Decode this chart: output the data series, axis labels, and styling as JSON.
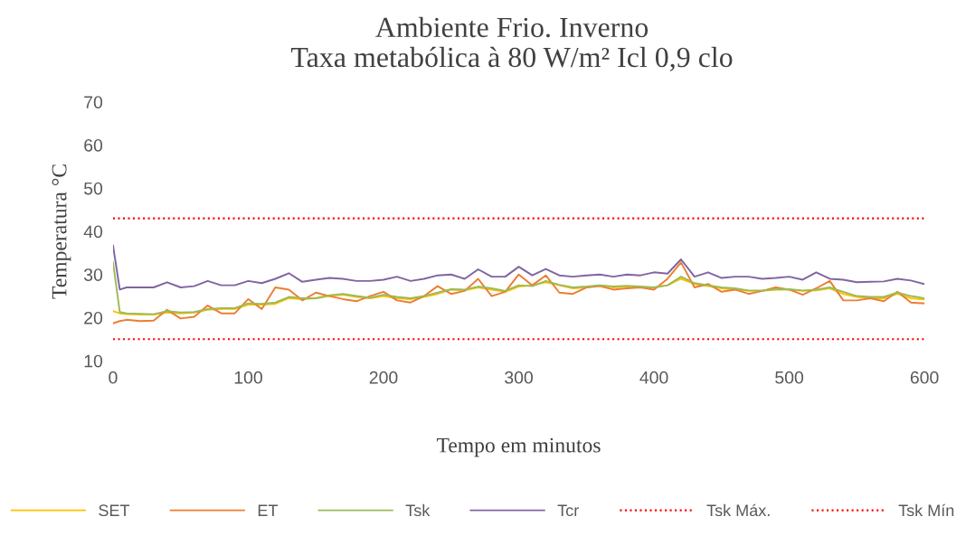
{
  "chart_data": {
    "type": "line",
    "title": "Ambiente Frio. Inverno",
    "subtitle": "Taxa metabólica à 80 W/m² Icl 0,9 clo",
    "xlabel": "Tempo em minutos",
    "ylabel": "Temperatura °C",
    "x": [
      0,
      5,
      10,
      20,
      30,
      40,
      50,
      60,
      70,
      80,
      90,
      100,
      110,
      120,
      130,
      140,
      150,
      160,
      170,
      180,
      190,
      200,
      210,
      220,
      230,
      240,
      250,
      260,
      270,
      280,
      290,
      300,
      310,
      320,
      330,
      340,
      350,
      360,
      370,
      380,
      390,
      400,
      410,
      420,
      430,
      440,
      450,
      460,
      470,
      480,
      490,
      500,
      510,
      520,
      530,
      540,
      550,
      560,
      570,
      580,
      590,
      600
    ],
    "series": [
      {
        "name": "SET",
        "color": "#ffc000",
        "values": [
          21.5,
          21,
          20.8,
          20.7,
          20.7,
          21.2,
          21,
          21.2,
          21.8,
          22,
          22,
          23,
          23,
          23.2,
          24.5,
          24.3,
          24.5,
          25,
          25.3,
          24.8,
          24.5,
          25,
          24.5,
          24.3,
          24.8,
          25.5,
          26.5,
          26.3,
          27,
          26.5,
          26,
          27.2,
          27.5,
          28.2,
          27.5,
          26.8,
          27,
          27.5,
          27,
          27.2,
          27,
          27,
          27.5,
          29,
          27.8,
          27.3,
          26.8,
          26.5,
          26.2,
          26.2,
          26.5,
          26.5,
          26.2,
          26.3,
          26.8,
          25.5,
          24.8,
          24.5,
          24.5,
          25.5,
          24.5,
          24.2
        ]
      },
      {
        "name": "ET",
        "color": "#ed7d31",
        "values": [
          18.7,
          19.2,
          19.5,
          19.2,
          19.3,
          21.8,
          19.8,
          20.2,
          22.8,
          21,
          21,
          24.3,
          22,
          27,
          26.5,
          24,
          25.8,
          25,
          24.3,
          23.8,
          25,
          26,
          24,
          23.5,
          25,
          27.3,
          25.5,
          26.2,
          29,
          25,
          26,
          30,
          27.5,
          29.8,
          25.8,
          25.5,
          27,
          27.3,
          26.5,
          26.8,
          27,
          26.5,
          29,
          32.8,
          27,
          27.8,
          26,
          26.5,
          25.5,
          26.2,
          27,
          26.5,
          25.3,
          26.8,
          28.5,
          24,
          24,
          24.5,
          23.8,
          26,
          23.5,
          23.3
        ]
      },
      {
        "name": "Tsk",
        "color": "#9bbb59",
        "values": [
          32.8,
          21.3,
          21,
          20.9,
          20.8,
          21.5,
          21.2,
          21.3,
          22,
          22.2,
          22.2,
          23.3,
          23.2,
          23.5,
          24.8,
          24.5,
          24.5,
          25.2,
          25.5,
          25,
          24.6,
          25.3,
          24.8,
          24.5,
          25,
          25.8,
          26.6,
          26.5,
          27.2,
          26.8,
          26.2,
          27.5,
          27.3,
          28.5,
          27.6,
          27,
          27.2,
          27.5,
          27.2,
          27.4,
          27.2,
          27,
          27.5,
          29.5,
          28,
          27.5,
          27,
          26.8,
          26.3,
          26.3,
          26.6,
          26.6,
          26.3,
          26.5,
          27,
          26,
          25,
          24.8,
          24.8,
          25.8,
          25,
          24.5
        ]
      },
      {
        "name": "Tcr",
        "color": "#8064a2",
        "values": [
          36.7,
          26.5,
          27,
          27,
          27,
          28.2,
          27,
          27.3,
          28.5,
          27.5,
          27.5,
          28.5,
          28,
          29,
          30.3,
          28.3,
          28.8,
          29.2,
          29,
          28.5,
          28.5,
          28.8,
          29.5,
          28.5,
          29,
          29.8,
          30,
          29,
          31.2,
          29.5,
          29.5,
          31.8,
          29.8,
          31.3,
          29.8,
          29.5,
          29.8,
          30,
          29.5,
          30,
          29.8,
          30.5,
          30.2,
          33.5,
          29.5,
          30.5,
          29.2,
          29.5,
          29.5,
          29,
          29.2,
          29.5,
          28.8,
          30.5,
          29,
          28.8,
          28.2,
          28.3,
          28.4,
          29,
          28.6,
          27.8
        ]
      }
    ],
    "ref_lines": [
      {
        "axis": "y",
        "value": 43,
        "label": "Tsk Máx.",
        "color": "#ff0000",
        "line_style": "dotted"
      },
      {
        "axis": "y",
        "value": 15,
        "label": "Tsk Mín",
        "color": "#ff0000",
        "line_style": "dotted"
      }
    ],
    "xlim": [
      0,
      600
    ],
    "xticks": [
      0,
      100,
      200,
      300,
      400,
      500,
      600
    ],
    "ylim": [
      10,
      70
    ],
    "yticks": [
      10,
      20,
      30,
      40,
      50,
      60,
      70
    ],
    "grid": false,
    "legend": "bottom",
    "marker": "none",
    "line_style": "solid"
  }
}
